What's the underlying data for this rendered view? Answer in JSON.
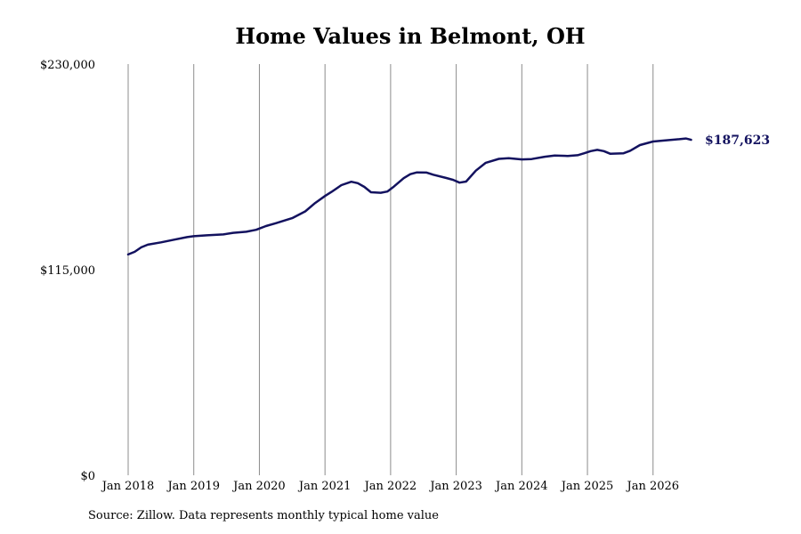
{
  "chart_data": {
    "type": "line",
    "title": "Home Values in Belmont, OH",
    "xlabel": "",
    "ylabel": "",
    "ylim": [
      0,
      230000
    ],
    "y_ticks": [
      "$0",
      "$115,000",
      "$230,000"
    ],
    "y_tick_values": [
      0,
      115000,
      230000
    ],
    "x_ticks": [
      "Jan 2018",
      "Jan 2019",
      "Jan 2020",
      "Jan 2021",
      "Jan 2022",
      "Jan 2023",
      "Jan 2024",
      "Jan 2025",
      "Jan 2026"
    ],
    "x_tick_values": [
      2018.0,
      2019.0,
      2020.0,
      2021.0,
      2022.0,
      2023.0,
      2024.0,
      2025.0,
      2026.0
    ],
    "xlim": [
      2018.0,
      2026.6
    ],
    "grid": "vertical",
    "line_color": "#13125f",
    "end_label": "$187,623",
    "series": [
      {
        "x": [
          2018.0,
          2018.1,
          2018.2,
          2018.3,
          2018.5,
          2018.7,
          2018.9,
          2019.0,
          2019.2,
          2019.45,
          2019.6,
          2019.8,
          2019.95,
          2020.1,
          2020.25,
          2020.5,
          2020.7,
          2020.85,
          2021.0,
          2021.1,
          2021.25,
          2021.4,
          2021.5,
          2021.6,
          2021.7,
          2021.85,
          2021.95,
          2022.05,
          2022.2,
          2022.3,
          2022.4,
          2022.55,
          2022.65,
          2022.85,
          2022.95,
          2023.05,
          2023.15,
          2023.3,
          2023.45,
          2023.65,
          2023.8,
          2024.0,
          2024.15,
          2024.35,
          2024.5,
          2024.7,
          2024.85,
          2024.95,
          2025.05,
          2025.15,
          2025.25,
          2025.35,
          2025.55,
          2025.65,
          2025.8,
          2026.0,
          2026.15,
          2026.4,
          2026.5,
          2026.58
        ],
        "y": [
          123500,
          125000,
          127500,
          129000,
          130300,
          131800,
          133200,
          133700,
          134200,
          134700,
          135600,
          136200,
          137300,
          139400,
          141000,
          143800,
          147600,
          152300,
          156200,
          158500,
          162300,
          164200,
          163400,
          161300,
          158300,
          158000,
          158700,
          161500,
          166200,
          168400,
          169400,
          169300,
          168100,
          166300,
          165300,
          163700,
          164300,
          170400,
          174800,
          177000,
          177400,
          176700,
          176900,
          178200,
          178800,
          178600,
          179000,
          180100,
          181300,
          182000,
          181300,
          179800,
          180100,
          181500,
          184700,
          186700,
          187200,
          188000,
          188400,
          187623
        ]
      }
    ]
  },
  "footer": {
    "source": "Source: Zillow. Data represents monthly typical home value"
  }
}
